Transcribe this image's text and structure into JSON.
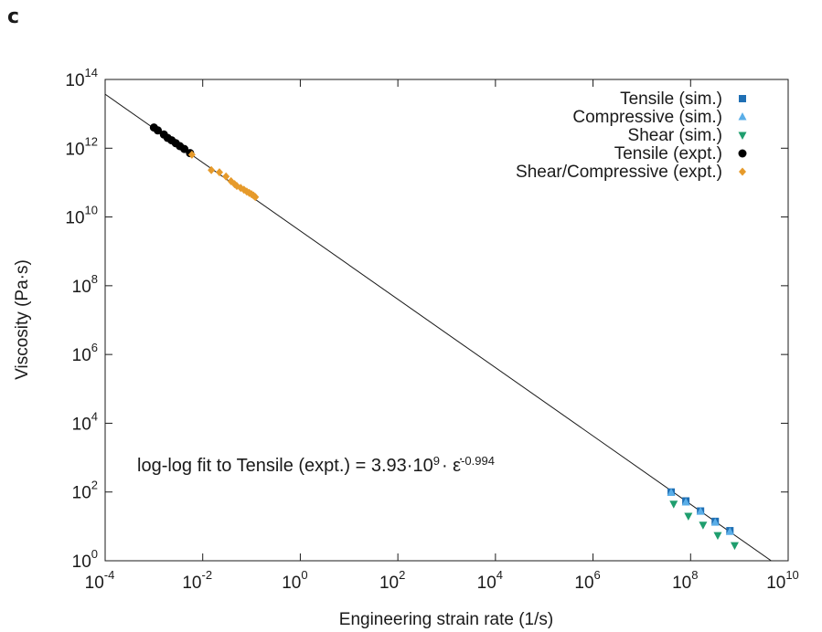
{
  "panel_label": "c",
  "chart_data": {
    "type": "scatter",
    "xlabel": "Engineering strain rate (1/s)",
    "ylabel": "Viscosity (Pa·s)",
    "xscale": "log",
    "yscale": "log",
    "xlim": [
      0.0001,
      10000000000
    ],
    "ylim": [
      1,
      100000000000000
    ],
    "x_ticks": [
      {
        "base": "10",
        "exp": "-4",
        "value": 0.0001
      },
      {
        "base": "10",
        "exp": "-2",
        "value": 0.01
      },
      {
        "base": "10",
        "exp": "0",
        "value": 1
      },
      {
        "base": "10",
        "exp": "2",
        "value": 100
      },
      {
        "base": "10",
        "exp": "4",
        "value": 10000
      },
      {
        "base": "10",
        "exp": "6",
        "value": 1000000
      },
      {
        "base": "10",
        "exp": "8",
        "value": 100000000
      },
      {
        "base": "10",
        "exp": "10",
        "value": 10000000000
      }
    ],
    "y_ticks": [
      {
        "base": "10",
        "exp": "0",
        "value": 1
      },
      {
        "base": "10",
        "exp": "2",
        "value": 100
      },
      {
        "base": "10",
        "exp": "4",
        "value": 10000
      },
      {
        "base": "10",
        "exp": "6",
        "value": 1000000
      },
      {
        "base": "10",
        "exp": "8",
        "value": 100000000
      },
      {
        "base": "10",
        "exp": "10",
        "value": 10000000000
      },
      {
        "base": "10",
        "exp": "12",
        "value": 1000000000000
      },
      {
        "base": "10",
        "exp": "14",
        "value": 100000000000000
      }
    ],
    "grid": false,
    "legend_position": "top-right",
    "series": [
      {
        "name": "Tensile (sim.)",
        "marker": "square",
        "color": "#1f6fb4",
        "points": [
          [
            40000000,
            100
          ],
          [
            80000000,
            55
          ],
          [
            160000000,
            28
          ],
          [
            320000000,
            14
          ],
          [
            640000000,
            7.5
          ]
        ]
      },
      {
        "name": "Compressive (sim.)",
        "marker": "triangle-up",
        "color": "#5aaee8",
        "points": [
          [
            40000000,
            95
          ],
          [
            80000000,
            50
          ],
          [
            160000000,
            27
          ],
          [
            320000000,
            13
          ],
          [
            640000000,
            7
          ]
        ]
      },
      {
        "name": "Shear (sim.)",
        "marker": "triangle-down",
        "color": "#1f9e6e",
        "points": [
          [
            45000000,
            45
          ],
          [
            90000000,
            20
          ],
          [
            180000000,
            11
          ],
          [
            360000000,
            5.5
          ],
          [
            800000000,
            2.8
          ]
        ]
      },
      {
        "name": "Tensile (expt.)",
        "marker": "circle",
        "color": "#000000",
        "points": [
          [
            0.001,
            4000000000000
          ],
          [
            0.0012,
            3300000000000
          ],
          [
            0.0016,
            2500000000000
          ],
          [
            0.0019,
            2000000000000
          ],
          [
            0.0023,
            1700000000000
          ],
          [
            0.0028,
            1400000000000
          ],
          [
            0.0034,
            1150000000000
          ],
          [
            0.0042,
            950000000000
          ],
          [
            0.0055,
            720000000000
          ]
        ]
      },
      {
        "name": "Shear/Compressive (expt.)",
        "marker": "diamond",
        "color": "#e69a2a",
        "points": [
          [
            0.006,
            650000000000
          ],
          [
            0.015,
            230000000000
          ],
          [
            0.022,
            200000000000
          ],
          [
            0.03,
            150000000000
          ],
          [
            0.038,
            110000000000
          ],
          [
            0.045,
            90000000000
          ],
          [
            0.05,
            80000000000
          ],
          [
            0.06,
            70000000000
          ],
          [
            0.07,
            62000000000
          ],
          [
            0.08,
            55000000000
          ],
          [
            0.09,
            50000000000
          ],
          [
            0.1,
            46000000000
          ],
          [
            0.11,
            42000000000
          ],
          [
            0.12,
            38000000000
          ]
        ]
      }
    ],
    "fit_line": {
      "coefficient": 3930000000,
      "exponent": -0.994,
      "x_range": [
        0.0001,
        10000000000
      ]
    },
    "annotation": {
      "prefix": "log-log fit to Tensile (expt.) = 3.93·10",
      "exp9": "9",
      "mid": "· ε̇",
      "exp_fit": "-0.994"
    }
  }
}
